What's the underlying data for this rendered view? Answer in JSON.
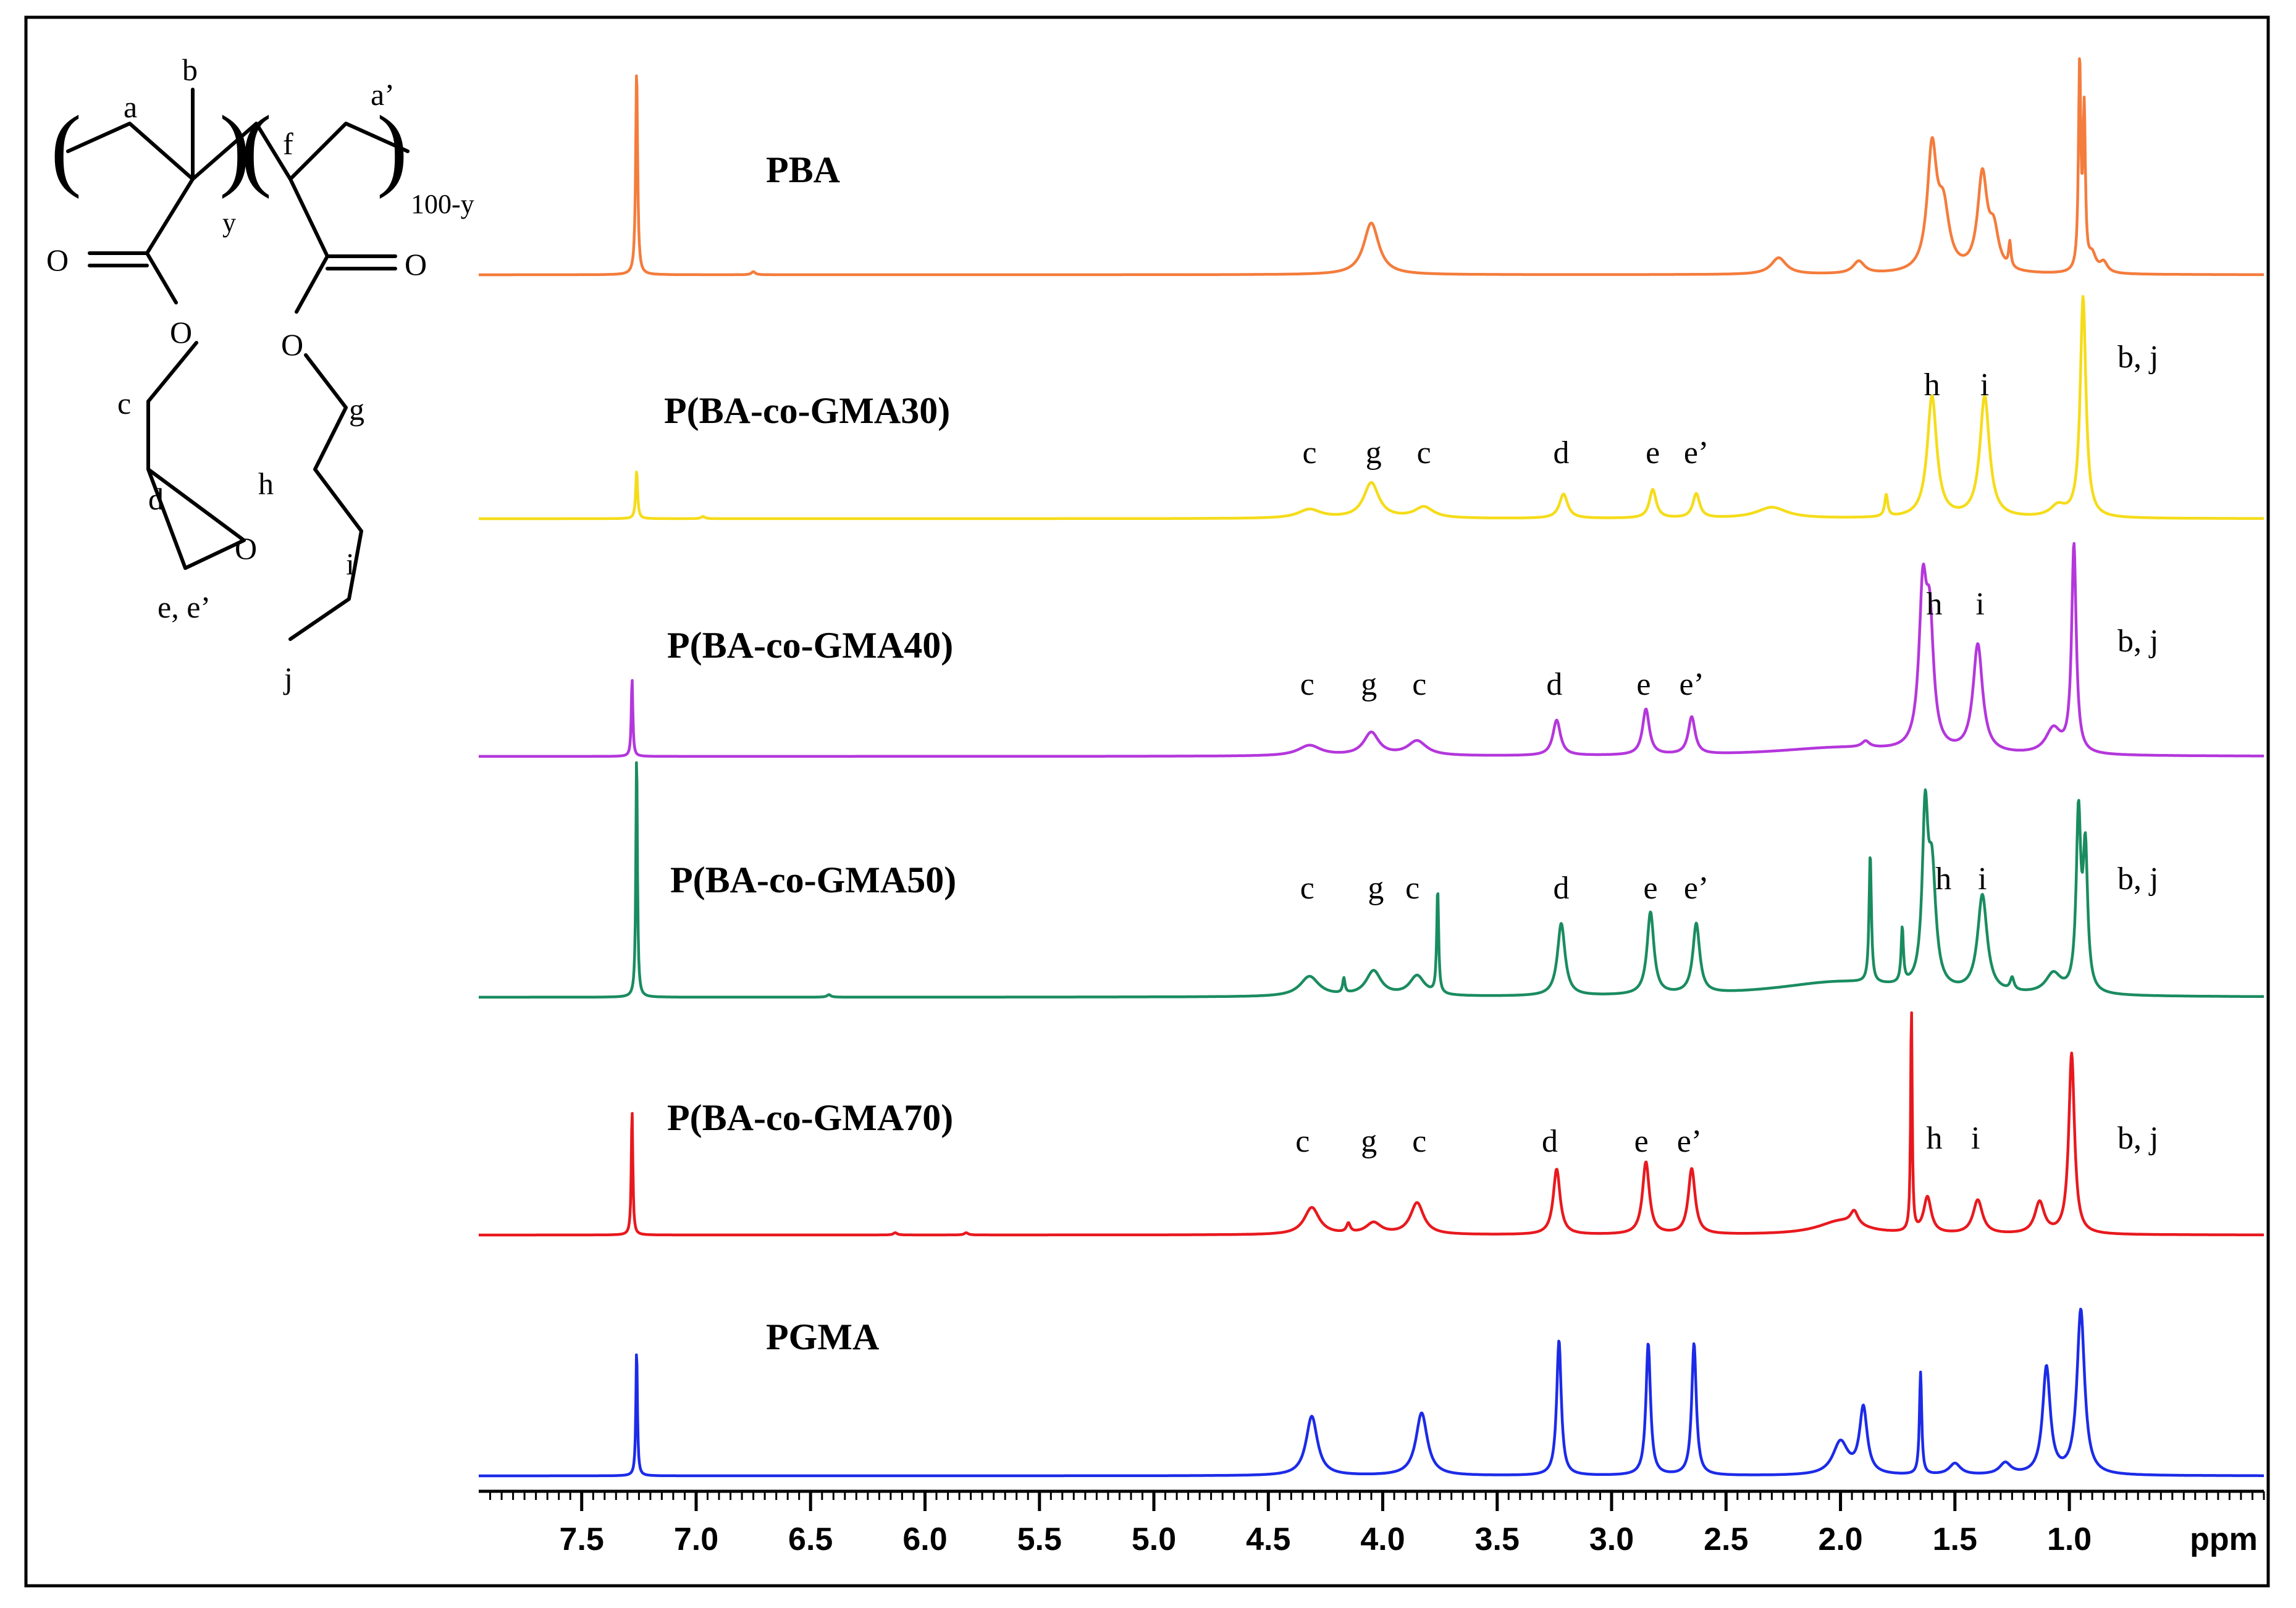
{
  "chart_data": {
    "type": "line",
    "title": "",
    "xlabel": "ppm",
    "ylabel": "",
    "xlim": [
      7.95,
      0.15
    ],
    "x_reversed": true,
    "grid": false,
    "xticks": [
      7.5,
      7.0,
      6.5,
      6.0,
      5.5,
      5.0,
      4.5,
      4.0,
      3.5,
      3.0,
      2.5,
      2.0,
      1.5,
      1.0
    ],
    "xtick_labels": [
      "7.5",
      "7.0",
      "6.5",
      "6.0",
      "5.5",
      "5.0",
      "4.5",
      "4.0",
      "3.5",
      "3.0",
      "2.5",
      "2.0",
      "1.5",
      "1.0"
    ],
    "series": [
      {
        "name": "PBA",
        "color": "#f47c3c",
        "peaks": [
          [
            7.26,
            1.0,
            0.005
          ],
          [
            6.75,
            0.015,
            0.01
          ],
          [
            4.05,
            0.25,
            0.04
          ],
          [
            2.27,
            0.08,
            0.04
          ],
          [
            1.92,
            0.06,
            0.03
          ],
          [
            1.6,
            0.58,
            0.025
          ],
          [
            1.55,
            0.28,
            0.03
          ],
          [
            1.38,
            0.46,
            0.025
          ],
          [
            1.33,
            0.18,
            0.025
          ],
          [
            1.26,
            0.12,
            0.006
          ],
          [
            0.955,
            1.0,
            0.006
          ],
          [
            0.935,
            0.75,
            0.006
          ],
          [
            0.9,
            0.08,
            0.02
          ],
          [
            0.85,
            0.05,
            0.02
          ]
        ],
        "labels": []
      },
      {
        "name": "P(BA-co-GMA30)",
        "color": "#f5dc1a",
        "peaks": [
          [
            7.26,
            0.22,
            0.005
          ],
          [
            6.97,
            0.01,
            0.01
          ],
          [
            4.32,
            0.04,
            0.06
          ],
          [
            4.05,
            0.16,
            0.04
          ],
          [
            3.82,
            0.05,
            0.05
          ],
          [
            3.21,
            0.11,
            0.022
          ],
          [
            2.82,
            0.13,
            0.018
          ],
          [
            2.63,
            0.11,
            0.018
          ],
          [
            2.3,
            0.05,
            0.08
          ],
          [
            1.8,
            0.1,
            0.008
          ],
          [
            1.6,
            0.55,
            0.025
          ],
          [
            1.37,
            0.55,
            0.025
          ],
          [
            1.05,
            0.05,
            0.04
          ],
          [
            0.94,
            1.0,
            0.015
          ]
        ],
        "labels": [
          {
            "text": "c",
            "ppm": 4.32
          },
          {
            "text": "g",
            "ppm": 4.04
          },
          {
            "text": "c",
            "ppm": 3.82
          },
          {
            "text": "d",
            "ppm": 3.22
          },
          {
            "text": "e",
            "ppm": 2.82
          },
          {
            "text": "e’",
            "ppm": 2.63
          },
          {
            "text": "h",
            "ppm": 1.6
          },
          {
            "text": "i",
            "ppm": 1.37
          },
          {
            "text": "b, j",
            "ppm": 0.7
          }
        ]
      },
      {
        "name": "P(BA-co-GMA40)",
        "color": "#b437dc",
        "peaks": [
          [
            7.28,
            0.38,
            0.004
          ],
          [
            4.32,
            0.05,
            0.06
          ],
          [
            4.05,
            0.11,
            0.04
          ],
          [
            3.85,
            0.07,
            0.05
          ],
          [
            3.24,
            0.17,
            0.02
          ],
          [
            2.85,
            0.22,
            0.018
          ],
          [
            2.65,
            0.18,
            0.018
          ],
          [
            2.0,
            0.04,
            0.35
          ],
          [
            1.89,
            0.03,
            0.02
          ],
          [
            1.64,
            0.72,
            0.02
          ],
          [
            1.61,
            0.55,
            0.02
          ],
          [
            1.4,
            0.52,
            0.025
          ],
          [
            1.07,
            0.12,
            0.04
          ],
          [
            0.98,
            1.0,
            0.012
          ]
        ],
        "labels": [
          {
            "text": "c",
            "ppm": 4.33
          },
          {
            "text": "g",
            "ppm": 4.06
          },
          {
            "text": "c",
            "ppm": 3.84
          },
          {
            "text": "d",
            "ppm": 3.25
          },
          {
            "text": "e",
            "ppm": 2.86
          },
          {
            "text": "e’",
            "ppm": 2.65
          },
          {
            "text": "h",
            "ppm": 1.59
          },
          {
            "text": "i",
            "ppm": 1.39
          },
          {
            "text": "b, j",
            "ppm": 0.7
          }
        ]
      },
      {
        "name": "P(BA-co-GMA50)",
        "color": "#1a8c60",
        "peaks": [
          [
            7.26,
            1.0,
            0.004
          ],
          [
            6.42,
            0.01,
            0.01
          ],
          [
            4.32,
            0.08,
            0.05
          ],
          [
            4.17,
            0.06,
            0.006
          ],
          [
            4.04,
            0.1,
            0.04
          ],
          [
            3.85,
            0.08,
            0.04
          ],
          [
            3.76,
            0.42,
            0.005
          ],
          [
            3.22,
            0.29,
            0.02
          ],
          [
            2.83,
            0.33,
            0.018
          ],
          [
            2.63,
            0.28,
            0.018
          ],
          [
            2.0,
            0.06,
            0.35
          ],
          [
            1.87,
            0.52,
            0.006
          ],
          [
            1.73,
            0.22,
            0.006
          ],
          [
            1.63,
            0.66,
            0.015
          ],
          [
            1.6,
            0.44,
            0.02
          ],
          [
            1.38,
            0.39,
            0.025
          ],
          [
            1.25,
            0.05,
            0.01
          ],
          [
            1.07,
            0.08,
            0.04
          ],
          [
            0.96,
            0.7,
            0.012
          ],
          [
            0.93,
            0.55,
            0.012
          ]
        ],
        "labels": [
          {
            "text": "c",
            "ppm": 4.33
          },
          {
            "text": "g",
            "ppm": 4.03
          },
          {
            "text": "c",
            "ppm": 3.87
          },
          {
            "text": "d",
            "ppm": 3.22
          },
          {
            "text": "e",
            "ppm": 2.83
          },
          {
            "text": "e’",
            "ppm": 2.63
          },
          {
            "text": "h",
            "ppm": 1.55
          },
          {
            "text": "i",
            "ppm": 1.38
          },
          {
            "text": "b, j",
            "ppm": 0.7
          }
        ]
      },
      {
        "name": "P(BA-co-GMA70)",
        "color": "#e8191e",
        "peaks": [
          [
            7.28,
            0.56,
            0.004
          ],
          [
            6.13,
            0.01,
            0.01
          ],
          [
            5.82,
            0.01,
            0.01
          ],
          [
            4.31,
            0.12,
            0.04
          ],
          [
            4.15,
            0.04,
            0.01
          ],
          [
            4.04,
            0.05,
            0.04
          ],
          [
            3.85,
            0.14,
            0.035
          ],
          [
            3.24,
            0.29,
            0.018
          ],
          [
            2.85,
            0.32,
            0.018
          ],
          [
            2.65,
            0.29,
            0.018
          ],
          [
            2.0,
            0.06,
            0.12
          ],
          [
            1.94,
            0.06,
            0.02
          ],
          [
            1.69,
            1.0,
            0.004
          ],
          [
            1.62,
            0.16,
            0.02
          ],
          [
            1.4,
            0.15,
            0.025
          ],
          [
            1.13,
            0.14,
            0.025
          ],
          [
            0.99,
            0.8,
            0.015
          ]
        ],
        "labels": [
          {
            "text": "c",
            "ppm": 4.35
          },
          {
            "text": "g",
            "ppm": 4.06
          },
          {
            "text": "c",
            "ppm": 3.84
          },
          {
            "text": "d",
            "ppm": 3.27
          },
          {
            "text": "e",
            "ppm": 2.87
          },
          {
            "text": "e’",
            "ppm": 2.66
          },
          {
            "text": "h",
            "ppm": 1.59
          },
          {
            "text": "i",
            "ppm": 1.41
          },
          {
            "text": "b, j",
            "ppm": 0.7
          }
        ]
      },
      {
        "name": "PGMA",
        "color": "#1c2be8",
        "peaks": [
          [
            7.26,
            0.78,
            0.004
          ],
          [
            4.31,
            0.36,
            0.03
          ],
          [
            3.83,
            0.38,
            0.03
          ],
          [
            3.23,
            0.82,
            0.012
          ],
          [
            2.84,
            0.8,
            0.012
          ],
          [
            2.64,
            0.8,
            0.012
          ],
          [
            2.0,
            0.2,
            0.04
          ],
          [
            1.9,
            0.4,
            0.02
          ],
          [
            1.65,
            0.62,
            0.006
          ],
          [
            1.5,
            0.07,
            0.03
          ],
          [
            1.28,
            0.07,
            0.03
          ],
          [
            1.1,
            0.65,
            0.02
          ],
          [
            0.95,
            1.0,
            0.02
          ]
        ],
        "labels": []
      }
    ]
  },
  "structure": {
    "labels": {
      "a": "a",
      "b": "b",
      "y": "y",
      "f": "f",
      "a_prime": "a’",
      "n": "100-y",
      "o1": "O",
      "o2": "O",
      "o3": "O",
      "o4": "O",
      "o5": "O",
      "c": "c",
      "d": "d",
      "ee": "e, e’",
      "g": "g",
      "h": "h",
      "i": "i",
      "j": "j"
    },
    "parens": {
      "open": "(",
      "close": ")"
    }
  }
}
